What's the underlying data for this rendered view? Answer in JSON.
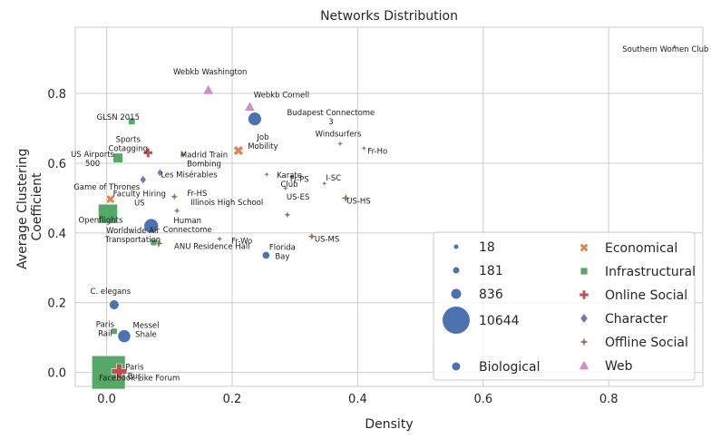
{
  "chart_data": {
    "type": "scatter",
    "title": "Networks Distribution",
    "xlabel": "Density",
    "ylabel": [
      "Average Clustering",
      "Coefficient"
    ],
    "xlim": [
      -0.05,
      0.95
    ],
    "ylim": [
      -0.04,
      0.99
    ],
    "xticks": [
      0.0,
      0.2,
      0.4,
      0.6,
      0.8
    ],
    "yticks": [
      0.0,
      0.2,
      0.4,
      0.6,
      0.8
    ],
    "tick_labels_x": [
      "0.0",
      "0.2",
      "0.4",
      "0.6",
      "0.8"
    ],
    "tick_labels_y": [
      "0.0",
      "0.2",
      "0.4",
      "0.6",
      "0.8"
    ],
    "grid": true,
    "legend_position": "lower-right",
    "size_legend": [
      {
        "label": "18",
        "size": 18
      },
      {
        "label": "181",
        "size": 181
      },
      {
        "label": "836",
        "size": 836
      },
      {
        "label": "10644",
        "size": 10644
      }
    ],
    "categories": [
      {
        "name": "Biological",
        "color": "#4c72b0",
        "marker": "circle"
      },
      {
        "name": "Economical",
        "color": "#dd8452",
        "marker": "x"
      },
      {
        "name": "Infrastructural",
        "color": "#55a868",
        "marker": "square"
      },
      {
        "name": "Online Social",
        "color": "#c44e52",
        "marker": "plus"
      },
      {
        "name": "Character",
        "color": "#8172b3",
        "marker": "diamond"
      },
      {
        "name": "Offline Social",
        "color": "#937860",
        "marker": "star"
      },
      {
        "name": "Web",
        "color": "#da8bc3",
        "marker": "triangle"
      }
    ],
    "points": [
      {
        "label": "Southern Women Club",
        "x": 0.905,
        "y": 0.935,
        "category": "Offline Social",
        "size": 18
      },
      {
        "label": "Webkb Washington",
        "x": 0.162,
        "y": 0.81,
        "category": "Web",
        "size": 230
      },
      {
        "label": "Webkb Cornell",
        "x": 0.228,
        "y": 0.762,
        "category": "Web",
        "size": 200
      },
      {
        "label": "Budapest Connectome 3",
        "x": 0.236,
        "y": 0.727,
        "category": "Biological",
        "size": 800
      },
      {
        "label": "GLSN 2015",
        "x": 0.04,
        "y": 0.72,
        "category": "Infrastructural",
        "size": 150
      },
      {
        "label": "Sports Cotagging",
        "x": 0.066,
        "y": 0.63,
        "category": "Online Social",
        "size": 200
      },
      {
        "label": "Job Mobility",
        "x": 0.21,
        "y": 0.636,
        "category": "Economical",
        "size": 300
      },
      {
        "label": "Windsurfers",
        "x": 0.372,
        "y": 0.656,
        "category": "Offline Social",
        "size": 43
      },
      {
        "label": "Fr-Ho",
        "x": 0.41,
        "y": 0.643,
        "category": "Offline Social",
        "size": 30
      },
      {
        "label": "Madrid Train Bombing",
        "x": 0.122,
        "y": 0.624,
        "category": "Offline Social",
        "size": 64
      },
      {
        "label": "US Airports 500",
        "x": 0.018,
        "y": 0.615,
        "category": "Infrastructural",
        "size": 500
      },
      {
        "label": "Les Misérables",
        "x": 0.085,
        "y": 0.573,
        "category": "Character",
        "size": 77
      },
      {
        "label": "Game of Thrones",
        "x": 0.058,
        "y": 0.553,
        "category": "Character",
        "size": 107
      },
      {
        "label": "Karate Club",
        "x": 0.255,
        "y": 0.568,
        "category": "Offline Social",
        "size": 34
      },
      {
        "label": "Fr-PS",
        "x": 0.285,
        "y": 0.528,
        "category": "Offline Social",
        "size": 40
      },
      {
        "label": "I-SC",
        "x": 0.347,
        "y": 0.542,
        "category": "Offline Social",
        "size": 30
      },
      {
        "label": "Fr-HS",
        "x": 0.108,
        "y": 0.504,
        "category": "Offline Social",
        "size": 120
      },
      {
        "label": "Faculty Hiring US",
        "x": 0.006,
        "y": 0.497,
        "category": "Economical",
        "size": 205
      },
      {
        "label": "US-HS",
        "x": 0.381,
        "y": 0.5,
        "category": "Offline Social",
        "size": 200
      },
      {
        "label": "Illinois High School",
        "x": 0.112,
        "y": 0.464,
        "category": "Offline Social",
        "size": 70
      },
      {
        "label": "Openflights",
        "x": 0.002,
        "y": 0.455,
        "category": "Infrastructural",
        "size": 3000
      },
      {
        "label": "US-ES",
        "x": 0.288,
        "y": 0.452,
        "category": "Offline Social",
        "size": 90
      },
      {
        "label": "Human Connectome",
        "x": 0.071,
        "y": 0.42,
        "category": "Biological",
        "size": 1000
      },
      {
        "label": "Worldwide Air Transportation",
        "x": 0.075,
        "y": 0.373,
        "category": "Infrastructural",
        "size": 120
      },
      {
        "label": "Fr-Wo",
        "x": 0.18,
        "y": 0.383,
        "category": "Offline Social",
        "size": 50
      },
      {
        "label": "ANU Residence Hall",
        "x": 0.083,
        "y": 0.37,
        "category": "Offline Social",
        "size": 217
      },
      {
        "label": "US-MS",
        "x": 0.327,
        "y": 0.39,
        "category": "Offline Social",
        "size": 150
      },
      {
        "label": "Florida Bay",
        "x": 0.254,
        "y": 0.336,
        "category": "Biological",
        "size": 125
      },
      {
        "label": "C. elegans",
        "x": 0.012,
        "y": 0.194,
        "category": "Biological",
        "size": 300
      },
      {
        "label": "Paris Rail",
        "x": 0.012,
        "y": 0.118,
        "category": "Infrastructural",
        "size": 100
      },
      {
        "label": "Messel Shale",
        "x": 0.028,
        "y": 0.104,
        "category": "Biological",
        "size": 700
      },
      {
        "label": "Facebook Like Forum",
        "x": 0.003,
        "y": 0.0,
        "category": "Infrastructural",
        "size": 10644
      },
      {
        "label": "Paris Bus",
        "x": 0.02,
        "y": 0.003,
        "category": "Online Social",
        "size": 899
      }
    ]
  }
}
